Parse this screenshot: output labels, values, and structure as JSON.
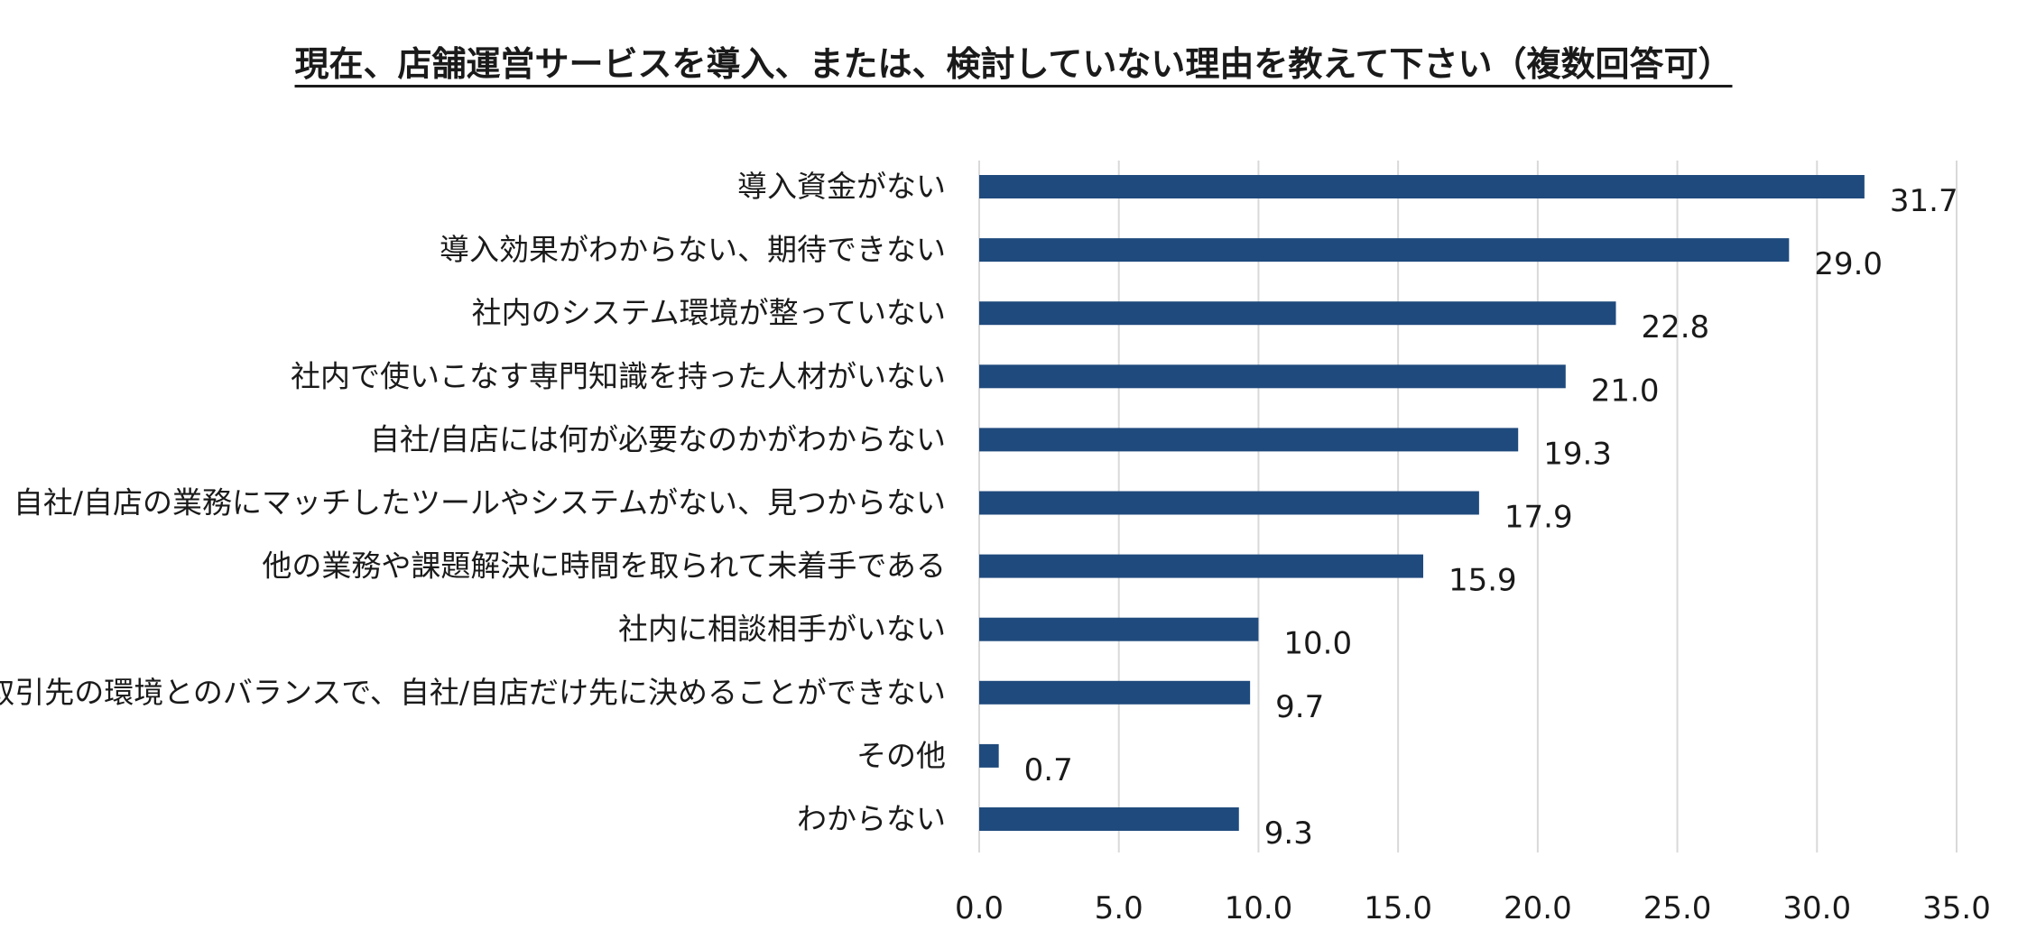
{
  "chart_data": {
    "type": "bar",
    "orientation": "horizontal",
    "title": "現在、店舗運営サービスを導入、または、検討していない理由を教えて下さい（複数回答可）",
    "categories": [
      "導入資金がない",
      "導入効果がわからない、期待できない",
      "社内のシステム環境が整っていない",
      "社内で使いこなす専門知識を持った人材がいない",
      "自社/自店には何が必要なのかがわからない",
      "自社/自店の業務にマッチしたツールやシステムがない、見つからない",
      "他の業務や課題解決に時間を取られて未着手である",
      "社内に相談相手がいない",
      "取引先の環境とのバランスで、自社/自店だけ先に決めることができない",
      "その他",
      "わからない"
    ],
    "values": [
      31.7,
      29.0,
      22.8,
      21.0,
      19.3,
      17.9,
      15.9,
      10.0,
      9.7,
      0.7,
      9.3
    ],
    "value_labels": [
      "31.7",
      "29.0",
      "22.8",
      "21.0",
      "19.3",
      "17.9",
      "15.9",
      "10.0",
      "9.7",
      "0.7",
      "9.3"
    ],
    "xlim": [
      0,
      35
    ],
    "xticks": [
      "0.0",
      "5.0",
      "10.0",
      "15.0",
      "20.0",
      "25.0",
      "30.0",
      "35.0"
    ],
    "xtick_values": [
      0,
      5,
      10,
      15,
      20,
      25,
      30,
      35
    ],
    "grid": "vertical",
    "legend": "none",
    "xlabel": "",
    "ylabel": "",
    "bar_color": "#1f4a7d",
    "grid_color": "#d9d9d9"
  }
}
